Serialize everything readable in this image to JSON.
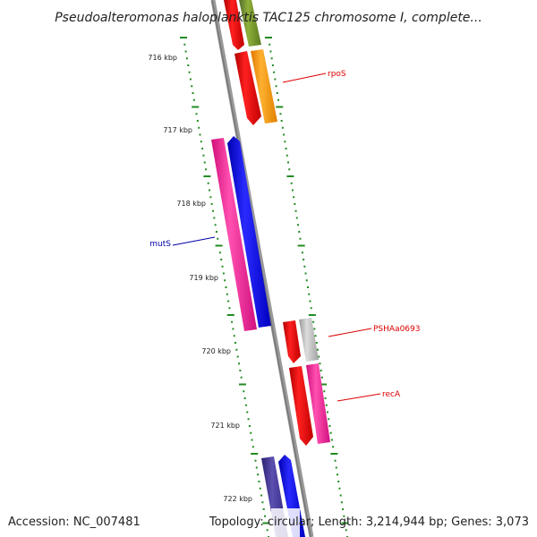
{
  "title": "Pseudoalteromonas haloplanktis TAC125 chromosome I, complete...",
  "accession": "Accession: NC_007481",
  "summary": "Topology: circular; Length: 3,214,944 bp; Genes: 3,073",
  "ruler": [
    "716 kbp",
    "717 kbp",
    "718 kbp",
    "719 kbp",
    "720 kbp",
    "721 kbp",
    "722 kbp"
  ],
  "genes": [
    {
      "name": "rpoS",
      "color": "#dd0000"
    },
    {
      "name": "mutS",
      "color": "#0000aa"
    },
    {
      "name": "PSHAa0693",
      "color": "#dd0000"
    },
    {
      "name": "recA",
      "color": "#dd0000"
    }
  ],
  "colors": {
    "red": "#ee0000",
    "olive": "#6b8e23",
    "orange": "#ff9900",
    "pink": "#ff1493",
    "blue": "#0000ee",
    "gray": "#bbbbbb",
    "navy": "#3b2f8f",
    "backbone": "#888888",
    "tick": "#228b22"
  }
}
